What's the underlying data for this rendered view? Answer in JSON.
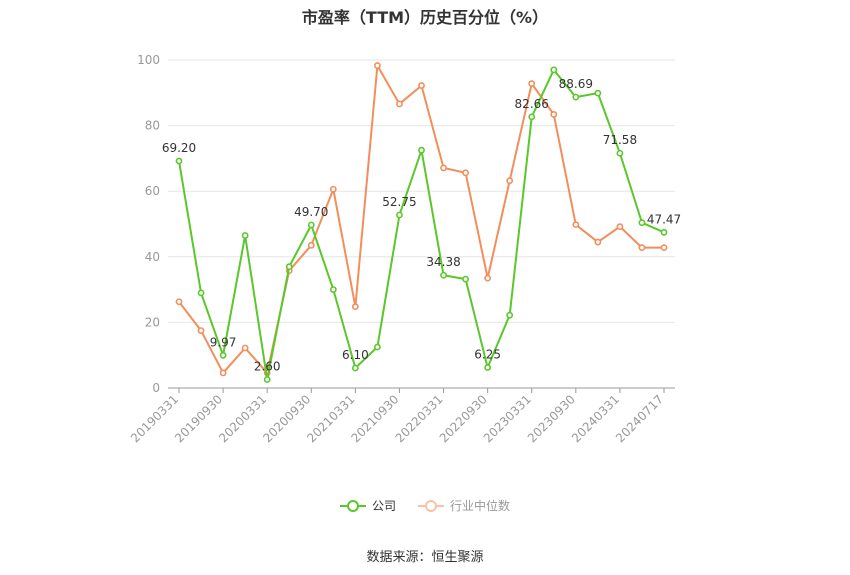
{
  "chart_data": {
    "type": "line",
    "title": "市盈率（TTM）历史百分位（%）",
    "source": "数据来源：恒生聚源",
    "ylim": [
      0,
      100
    ],
    "yticks": [
      0,
      20,
      40,
      60,
      80,
      100
    ],
    "grid": true,
    "legend_position": "bottom",
    "x_tick_labels": [
      "20190331",
      "20190930",
      "20200331",
      "20200930",
      "20210331",
      "20210930",
      "20220331",
      "20220930",
      "20230331",
      "20230930",
      "20240331",
      "20240717"
    ],
    "x_tick_index": [
      0,
      2,
      4,
      6,
      8,
      10,
      12,
      14,
      16,
      18,
      20,
      22
    ],
    "series": [
      {
        "name": "公司",
        "color": "#5ac72b",
        "values": [
          69.2,
          29,
          9.97,
          46.5,
          2.6,
          37,
          49.7,
          30,
          6.1,
          12.5,
          52.75,
          72.5,
          34.38,
          33.2,
          6.25,
          22.2,
          82.66,
          97,
          88.69,
          89.9,
          71.58,
          50.4,
          47.47
        ],
        "labels": {
          "0": "69.20",
          "2": "9.97",
          "4": "2.60",
          "6": "49.70",
          "8": "6.10",
          "10": "52.75",
          "12": "34.38",
          "14": "6.25",
          "16": "82.66",
          "18": "88.69",
          "20": "71.58",
          "22": "47.47"
        }
      },
      {
        "name": "行业中位数",
        "color": "#f28e5b",
        "values": [
          26.3,
          17.5,
          4.6,
          12.2,
          4.6,
          35.8,
          43.5,
          60.6,
          24.8,
          98.3,
          86.6,
          92.2,
          67.1,
          65.6,
          33.5,
          63.2,
          92.8,
          83.4,
          49.8,
          44.5,
          49.2,
          42.8,
          42.8
        ]
      }
    ]
  }
}
